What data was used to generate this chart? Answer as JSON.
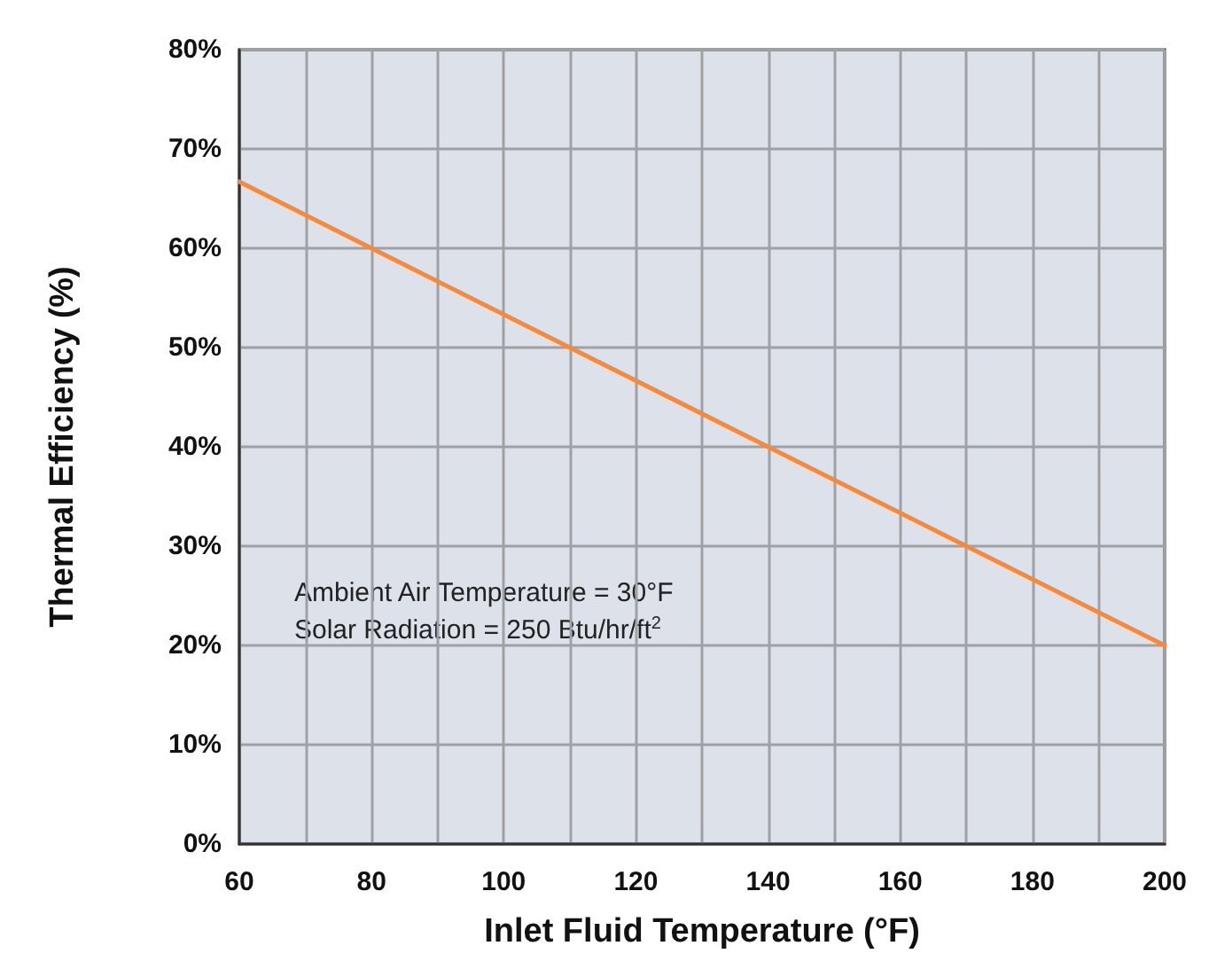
{
  "chart_data": {
    "type": "line",
    "xlabel": "Inlet Fluid Temperature (°F)",
    "ylabel": "Thermal Efficiency (%)",
    "x": [
      60,
      80,
      110,
      140,
      170,
      200
    ],
    "series": [
      {
        "color": "#f58a3c",
        "values": [
          66.7,
          60,
          50,
          40,
          30,
          20
        ]
      }
    ],
    "xlim": [
      60,
      200
    ],
    "xticks": [
      60,
      {
        "value": 70,
        "label": null
      },
      80,
      {
        "value": 90,
        "label": null
      },
      100,
      {
        "value": 110,
        "label": null
      },
      120,
      {
        "value": 130,
        "label": null
      },
      140,
      {
        "value": 150,
        "label": null
      },
      160,
      {
        "value": 170,
        "label": null
      },
      180,
      {
        "value": 190,
        "label": null
      },
      200
    ],
    "ylim": [
      0,
      80
    ],
    "yticks": [
      {
        "value": 0,
        "label": "0%"
      },
      {
        "value": 10,
        "label": "10%"
      },
      {
        "value": 20,
        "label": "20%"
      },
      {
        "value": 30,
        "label": "30%"
      },
      {
        "value": 40,
        "label": "40%"
      },
      {
        "value": 50,
        "label": "50%"
      },
      {
        "value": 60,
        "label": "60%"
      },
      {
        "value": 70,
        "label": "70%"
      },
      {
        "value": 80,
        "label": "80%"
      }
    ],
    "grid": true,
    "marker": "none",
    "line_style": "solid",
    "annotations": [
      "Ambient Air Temperature = 30°F",
      "Solar Radiation = 250 Btu/hr/ft$^{2}$"
    ]
  }
}
